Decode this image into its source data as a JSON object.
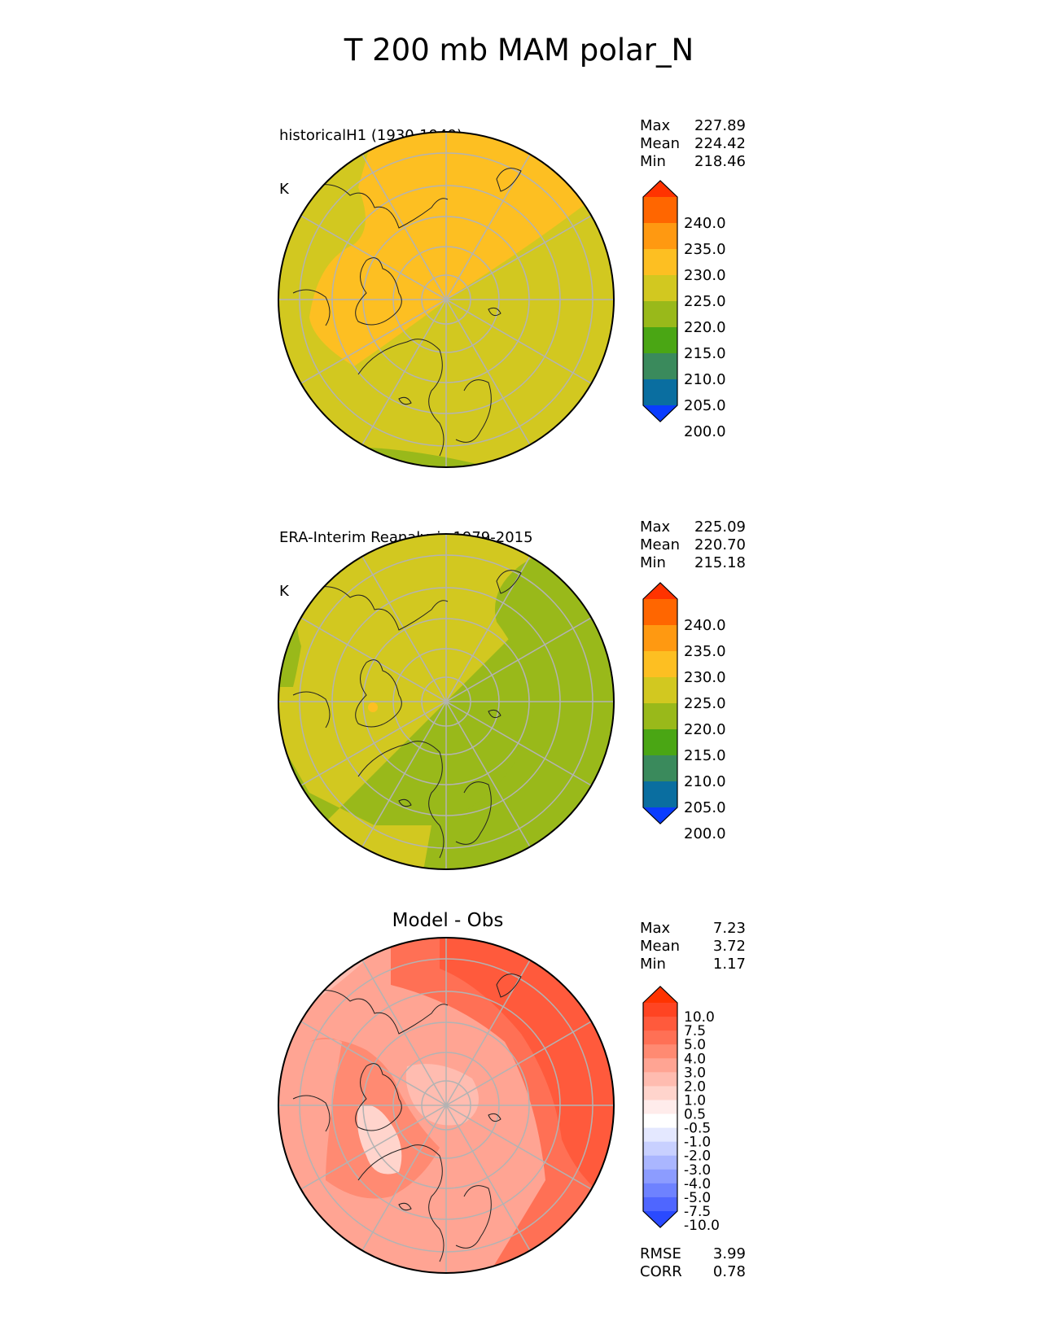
{
  "page": {
    "title": "T 200 mb MAM polar_N"
  },
  "panels": [
    {
      "id": "test",
      "title": "historicalH1 (1930-1949)",
      "units": "K",
      "stats": [
        {
          "label": "Max",
          "value": "227.89"
        },
        {
          "label": "Mean",
          "value": "224.42"
        },
        {
          "label": "Min",
          "value": "218.46"
        }
      ],
      "colorbar": {
        "labels": [
          "240.0",
          "235.0",
          "230.0",
          "225.0",
          "220.0",
          "215.0",
          "210.0",
          "205.0",
          "200.0"
        ],
        "colors": [
          "#ff3300",
          "#ff6600",
          "#ff9911",
          "#fdbf22",
          "#d2c820",
          "#99b91a",
          "#4aa614",
          "#3a8a5c",
          "#0a6ea0",
          "#0a3cff"
        ]
      }
    },
    {
      "id": "reference",
      "title": "ERA-Interim Reanalysis 1979-2015",
      "units": "K",
      "stats": [
        {
          "label": "Max",
          "value": "225.09"
        },
        {
          "label": "Mean",
          "value": "220.70"
        },
        {
          "label": "Min",
          "value": "215.18"
        }
      ],
      "colorbar": {
        "labels": [
          "240.0",
          "235.0",
          "230.0",
          "225.0",
          "220.0",
          "215.0",
          "210.0",
          "205.0",
          "200.0"
        ],
        "colors": [
          "#ff3300",
          "#ff6600",
          "#ff9911",
          "#fdbf22",
          "#d2c820",
          "#99b91a",
          "#4aa614",
          "#3a8a5c",
          "#0a6ea0",
          "#0a3cff"
        ]
      }
    },
    {
      "id": "diff",
      "title": "Model - Obs",
      "stats": [
        {
          "label": "Max",
          "value": "7.23"
        },
        {
          "label": "Mean",
          "value": "3.72"
        },
        {
          "label": "Min",
          "value": "1.17"
        }
      ],
      "metrics": [
        {
          "label": "RMSE",
          "value": "3.99"
        },
        {
          "label": "CORR",
          "value": "0.78"
        }
      ],
      "colorbar": {
        "labels": [
          "10.0",
          "7.5",
          "5.0",
          "4.0",
          "3.0",
          "2.0",
          "1.0",
          "0.5",
          "-0.5",
          "-1.0",
          "-2.0",
          "-3.0",
          "-4.0",
          "-5.0",
          "-7.5",
          "-10.0"
        ],
        "colors": [
          "#ff3300",
          "#ff4422",
          "#ff5a3c",
          "#ff7055",
          "#ff8a72",
          "#ffa493",
          "#ffbcb0",
          "#ffd4cc",
          "#ffeceb",
          "#ffffff",
          "#e4e8ff",
          "#c8d0ff",
          "#aab6ff",
          "#8c9cff",
          "#6e82ff",
          "#4f66ff",
          "#2a4aff"
        ]
      }
    }
  ]
}
